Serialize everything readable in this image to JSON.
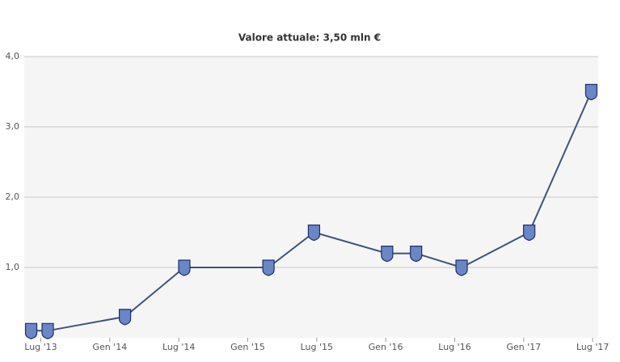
{
  "chart_data": {
    "type": "line",
    "title": "Valore attuale: 3,50 mln €",
    "x": [
      2013.43,
      2013.55,
      2014.11,
      2014.54,
      2015.15,
      2015.48,
      2016.01,
      2016.22,
      2016.55,
      2017.04,
      2017.49
    ],
    "values": [
      0.1,
      0.1,
      0.3,
      1.0,
      1.0,
      1.5,
      1.2,
      1.2,
      1.0,
      1.5,
      3.5
    ],
    "color": "#3e5577",
    "xlim": [
      2013.38,
      2017.54
    ],
    "xticks": [
      {
        "value": 2013.5,
        "label": "Lug '13"
      },
      {
        "value": 2014.0,
        "label": "Gen '14"
      },
      {
        "value": 2014.5,
        "label": "Lug '14"
      },
      {
        "value": 2015.0,
        "label": "Gen '15"
      },
      {
        "value": 2015.5,
        "label": "Lug '15"
      },
      {
        "value": 2016.0,
        "label": "Gen '16"
      },
      {
        "value": 2016.5,
        "label": "Lug '16"
      },
      {
        "value": 2017.0,
        "label": "Gen '17"
      },
      {
        "value": 2017.5,
        "label": "Lug '17"
      }
    ],
    "ylim": [
      0,
      4
    ],
    "yticks": [
      {
        "value": 1,
        "label": "1,0"
      },
      {
        "value": 2,
        "label": "2,0"
      },
      {
        "value": 3,
        "label": "3,0"
      },
      {
        "value": 4,
        "label": "4,0"
      }
    ],
    "grid": true
  }
}
